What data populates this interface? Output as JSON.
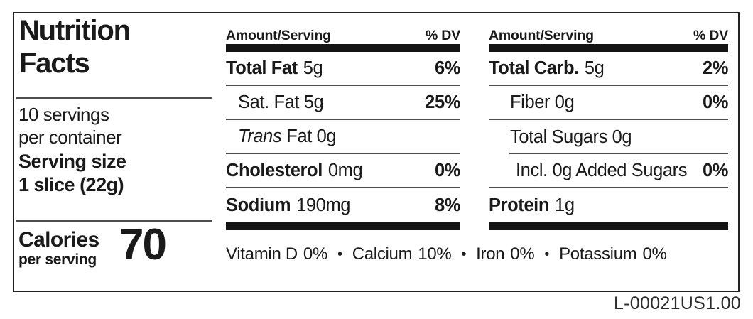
{
  "nutrition_label": {
    "title": [
      "Nutrition",
      "Facts"
    ],
    "servings_per_container": [
      "10 servings",
      "per container"
    ],
    "serving_size": {
      "label": "Serving size",
      "value": "1 slice (22g)"
    },
    "calories": {
      "label": "Calories",
      "sublabel": "per serving",
      "value": "70"
    },
    "columns": [
      {
        "header": {
          "amount": "Amount/Serving",
          "dv": "% DV"
        },
        "rows": [
          {
            "bold": "Total Fat",
            "reg": "5g",
            "dv": "6%"
          },
          {
            "text": "Sat. Fat 5g",
            "dv": "25%"
          },
          {
            "italic": "Trans",
            "text": "Fat 0g",
            "dv": ""
          },
          {
            "bold": "Cholesterol",
            "reg": "0mg",
            "dv": "0%"
          },
          {
            "bold": "Sodium",
            "reg": "190mg",
            "dv": "8%"
          }
        ]
      },
      {
        "header": {
          "amount": "Amount/Serving",
          "dv": "% DV"
        },
        "rows": [
          {
            "bold": "Total Carb.",
            "reg": "5g",
            "dv": "2%"
          },
          {
            "text": "Fiber 0g",
            "dv": "0%"
          },
          {
            "text": "Total Sugars 0g",
            "dv": ""
          },
          {
            "text": "Incl. 0g Added Sugars",
            "dv": "0%"
          },
          {
            "bold": "Protein",
            "reg": "1g",
            "dv": ""
          }
        ]
      }
    ],
    "micronutrients": {
      "separator": "•",
      "items": [
        {
          "name": "Vitamin D",
          "dv": "0%"
        },
        {
          "name": "Calcium",
          "dv": "10%"
        },
        {
          "name": "Iron",
          "dv": "0%"
        },
        {
          "name": "Potassium",
          "dv": "0%"
        }
      ]
    },
    "footer_code": "L-00021US1.00",
    "colors": {
      "text": "#1a1a1a",
      "rule": "#4d4d4d",
      "bar": "#141414",
      "border": "#222222"
    }
  }
}
